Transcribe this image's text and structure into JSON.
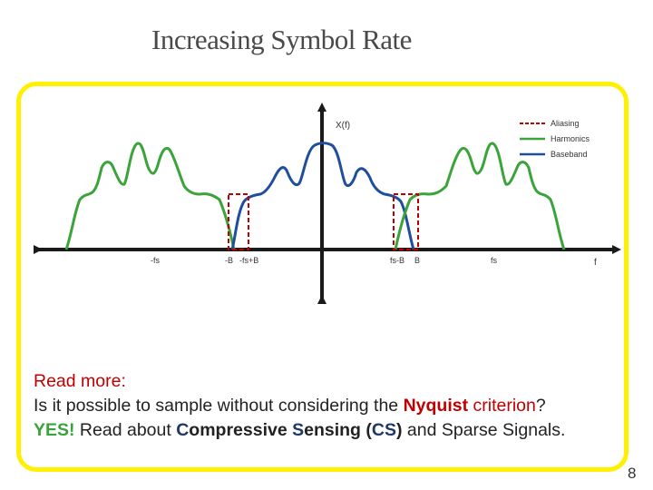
{
  "slide": {
    "title": "Increasing Symbol Rate",
    "page_number": "8"
  },
  "diagram": {
    "y_axis_label": "X(f)",
    "x_axis_label": "f",
    "tick_labels": [
      "-fs",
      "-B",
      "-fs+B",
      "fs-B",
      "B",
      "fs"
    ],
    "legend": [
      {
        "label": "Aliasing",
        "color": "#c00000",
        "style": "dashed"
      },
      {
        "label": "Harmonics",
        "color": "#3aa33a",
        "style": "solid"
      },
      {
        "label": "Baseband",
        "color": "#1f4e9c",
        "style": "solid"
      }
    ]
  },
  "note": {
    "heading": "Read more:",
    "line1_prefix": "Is it possible to sample without considering the ",
    "line1_nyquist": "Nyquist",
    "line1_space": " ",
    "line1_criterion": "criterion",
    "line1_suffix": "?",
    "line2_yes": "YES!",
    "line2_read": " Read about ",
    "line2_c": "C",
    "line2_ompressive": "ompressive ",
    "line2_s": "S",
    "line2_ensing": "ensing ",
    "line2_open": "(",
    "line2_cs": "CS",
    "line2_close": ")",
    "line2_suffix": " and Sparse Signals."
  }
}
